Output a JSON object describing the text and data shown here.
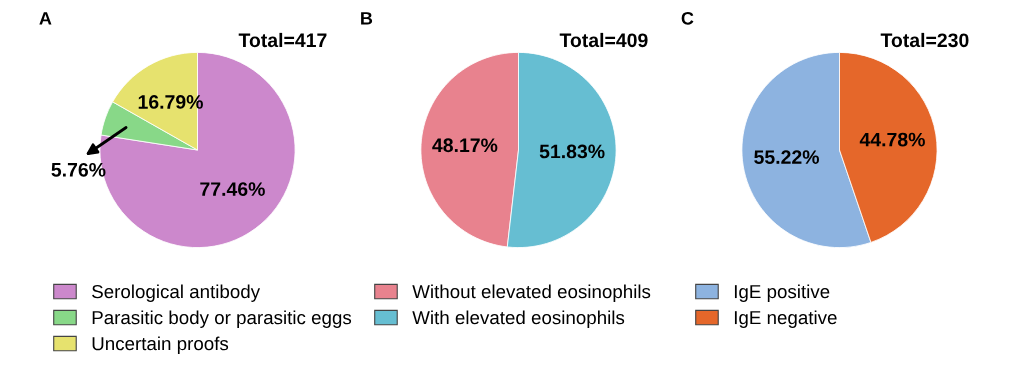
{
  "chart_data": [
    {
      "type": "pie",
      "title": "A",
      "categories": [
        "Serological antibody",
        "Parasitic body or parasitic eggs",
        "Uncertain proofs"
      ],
      "values": [
        77.46,
        5.76,
        16.79
      ],
      "colors": [
        "#cc88cc",
        "#88d888",
        "#e6e26e"
      ],
      "value_labels": [
        "77.46%",
        "5.76%",
        "16.79%"
      ],
      "annotations": [
        "Total=417"
      ],
      "legend": "bottom"
    },
    {
      "type": "pie",
      "title": "B",
      "categories": [
        "Without elevated eosinophils",
        "With elevated eosinophils"
      ],
      "values": [
        48.17,
        51.83
      ],
      "colors": [
        "#e8828e",
        "#66bed2"
      ],
      "value_labels": [
        "48.17%",
        "51.83%"
      ],
      "annotations": [
        "Total=409"
      ],
      "legend": "bottom"
    },
    {
      "type": "pie",
      "title": "C",
      "categories": [
        "IgE positive",
        "IgE negative"
      ],
      "values": [
        55.22,
        44.78
      ],
      "colors": [
        "#8db3e0",
        "#e5672a"
      ],
      "value_labels": [
        "55.22%",
        "44.78%"
      ],
      "annotations": [
        "Total=230"
      ],
      "legend": "bottom"
    }
  ]
}
